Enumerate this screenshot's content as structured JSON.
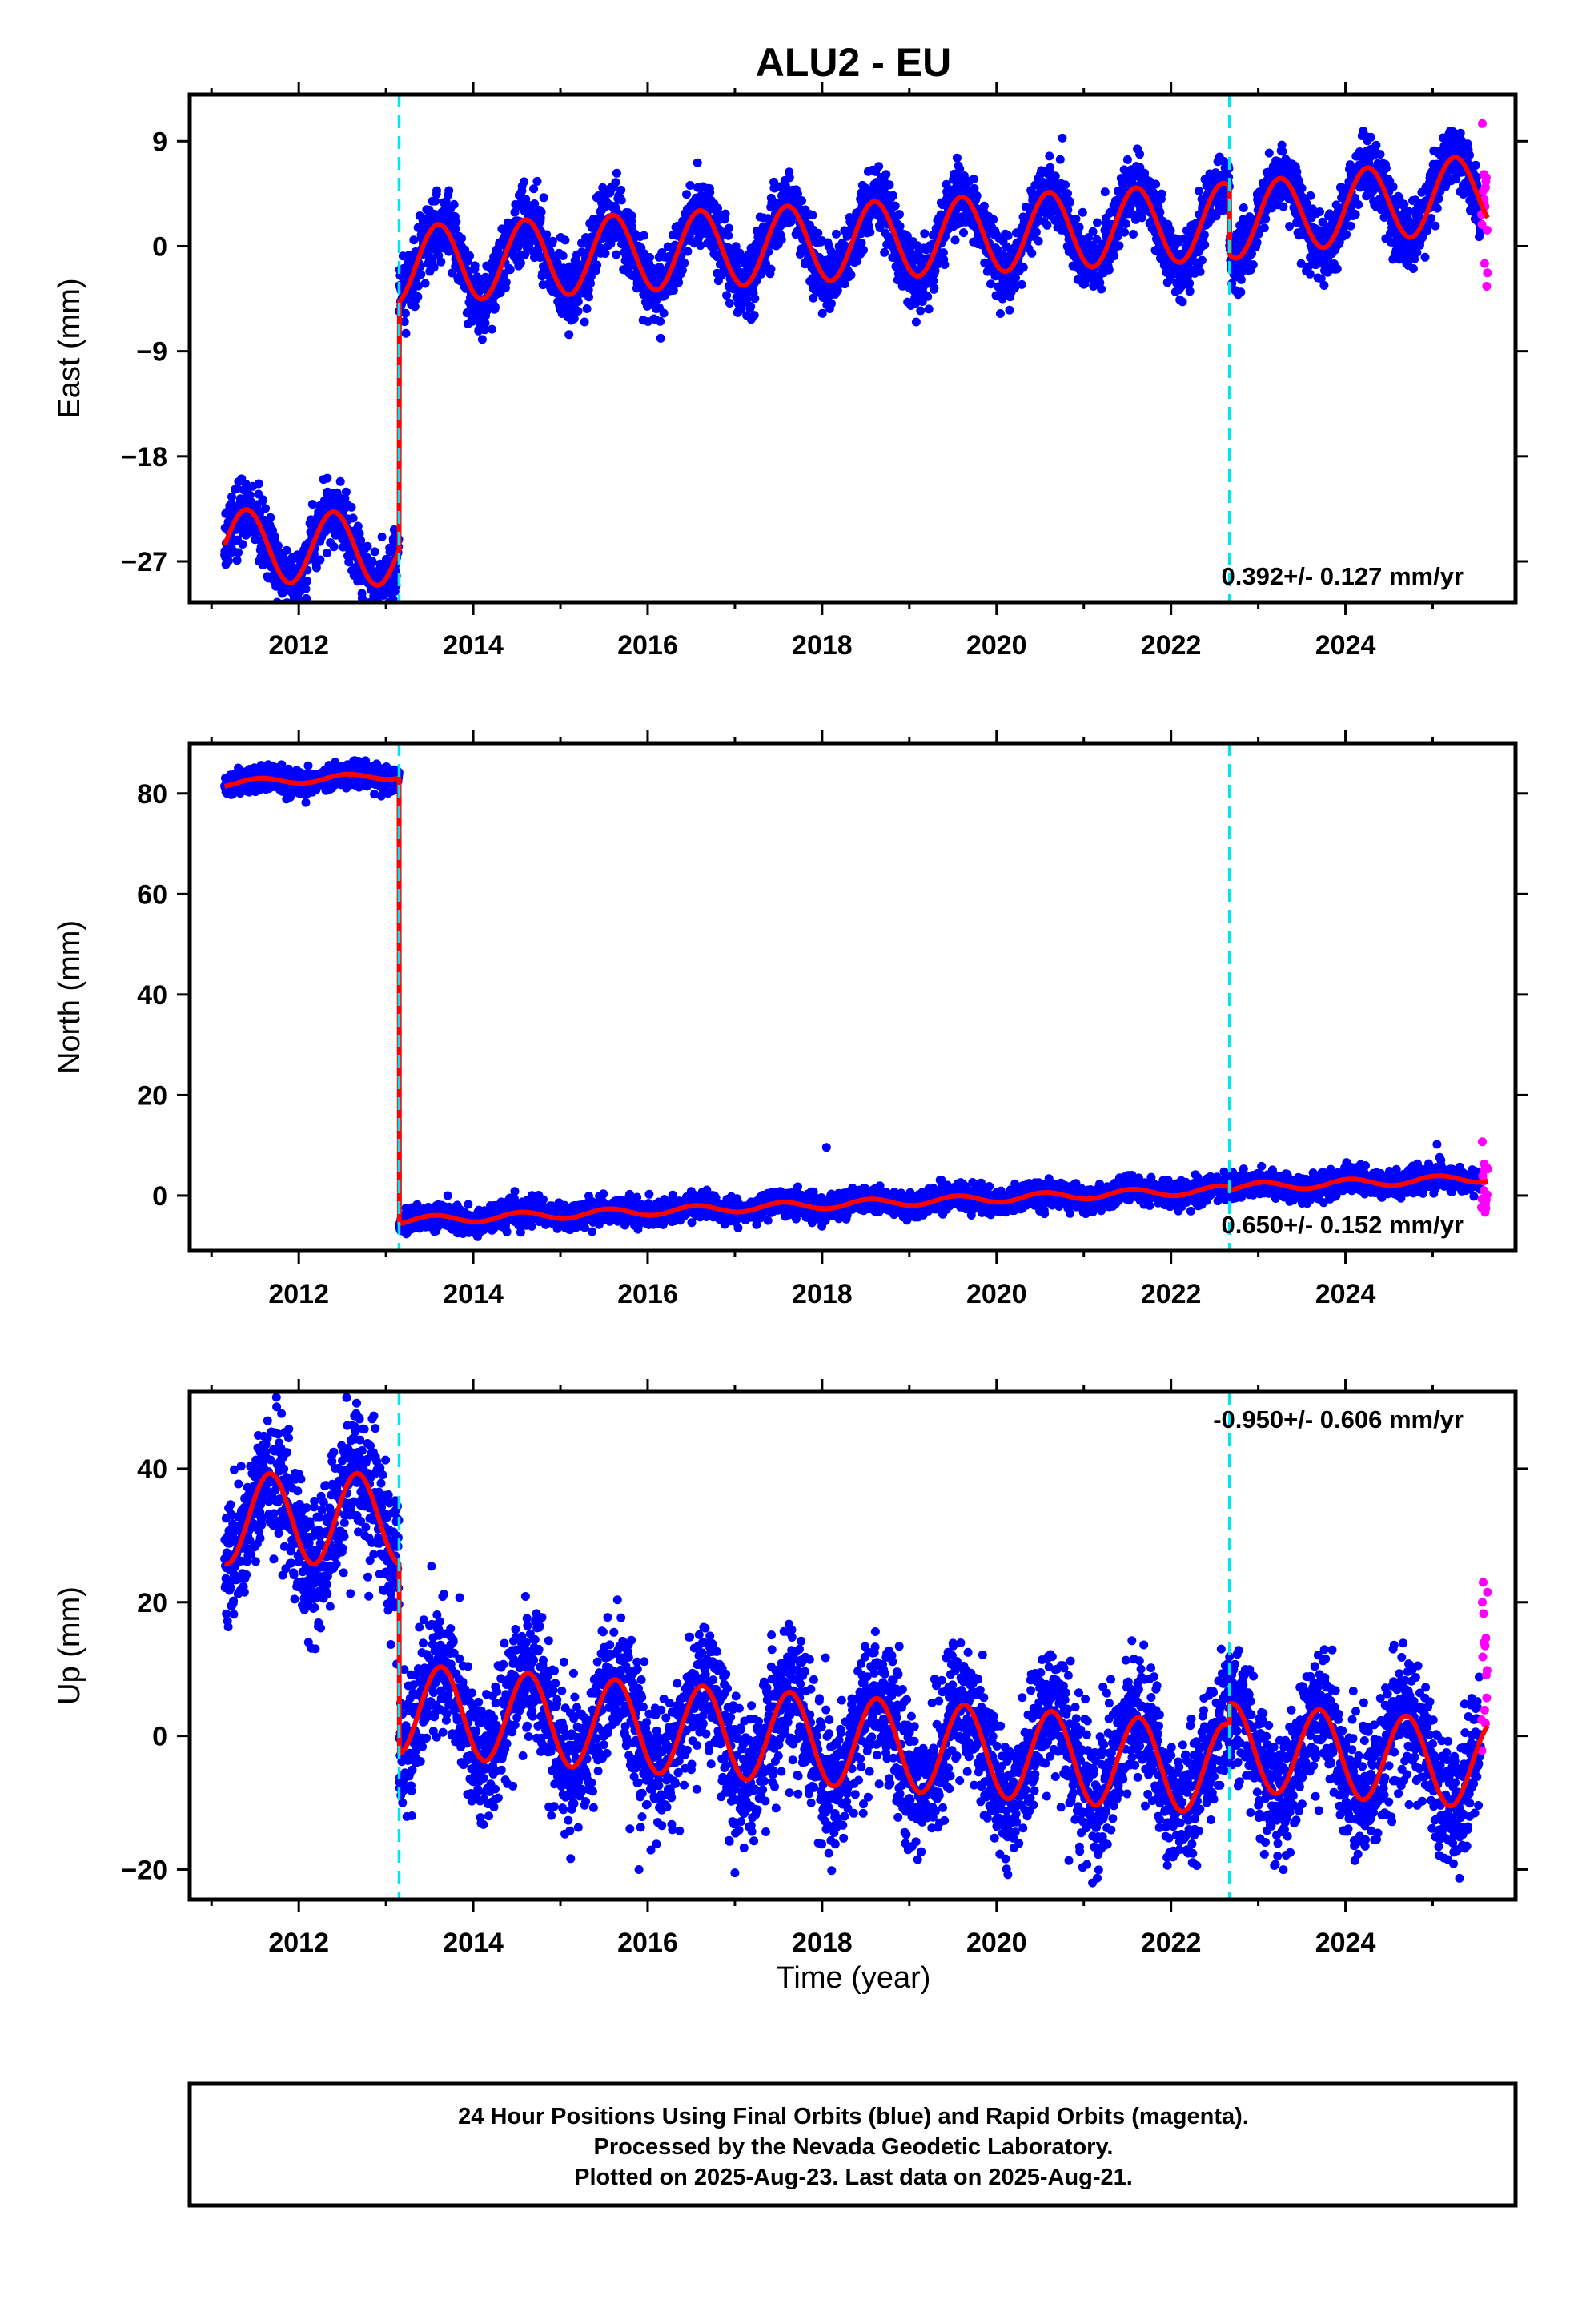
{
  "title": "ALU2 - EU",
  "xlabel": "Time (year)",
  "caption": [
    "24 Hour Positions Using Final Orbits (blue) and Rapid Orbits (magenta).",
    "Processed by the Nevada Geodetic Laboratory.",
    "Plotted on 2025-Aug-23. Last data on 2025-Aug-21."
  ],
  "colors": {
    "final_points": "#0000ff",
    "rapid_points": "#ff00ff",
    "model": "#ff0000",
    "breaks": "#00e5ee",
    "frame": "#000000"
  },
  "chart_data": [
    {
      "type": "scatter",
      "ylabel": "East (mm)",
      "xlim": [
        2010.75,
        2025.95
      ],
      "ylim": [
        -30.5,
        13
      ],
      "xticks": [
        2012,
        2014,
        2016,
        2018,
        2020,
        2022,
        2024
      ],
      "yticks": [
        -27,
        -18,
        -9,
        0,
        9
      ],
      "ytick_labels": [
        "−27",
        "−18",
        "−9",
        "0",
        "9"
      ],
      "breaks": [
        2013.15,
        2022.67
      ],
      "rate_text": "0.392+/- 0.127 mm/yr",
      "rate_position": "bottom-right",
      "series": {
        "final": {
          "start": 2011.15,
          "end": 2025.55
        },
        "rapid": {
          "start": 2025.56,
          "end": 2025.63
        }
      },
      "model_segments": [
        {
          "start": 2011.15,
          "end": 2013.15,
          "offset": -25.6,
          "trend": -0.2,
          "annual": 3.1,
          "phase": 2011.15
        },
        {
          "start": 2013.15,
          "end": 2022.67,
          "offset": -1.6,
          "trend": 0.392,
          "annual": 3.3,
          "phase": 2013.35
        },
        {
          "start": 2022.67,
          "end": 2025.63,
          "offset": 2.1,
          "trend": 0.9,
          "annual": 3.2,
          "phase": 2023.0
        }
      ]
    },
    {
      "type": "scatter",
      "ylabel": "North (mm)",
      "xlim": [
        2010.75,
        2025.95
      ],
      "ylim": [
        -11,
        90
      ],
      "xticks": [
        2012,
        2014,
        2016,
        2018,
        2020,
        2022,
        2024
      ],
      "yticks": [
        0,
        20,
        40,
        60,
        80
      ],
      "ytick_labels": [
        "0",
        "20",
        "40",
        "60",
        "80"
      ],
      "breaks": [
        2013.15,
        2022.67
      ],
      "rate_text": "0.650+/- 0.152 mm/yr",
      "rate_position": "bottom-right",
      "series": {
        "final": {
          "start": 2011.15,
          "end": 2025.55
        },
        "rapid": {
          "start": 2025.56,
          "end": 2025.63
        }
      },
      "model_segments": [
        {
          "start": 2011.15,
          "end": 2013.15,
          "offset": 82.0,
          "trend": 0.8,
          "annual": 0.7,
          "phase": 2011.3
        },
        {
          "start": 2013.15,
          "end": 2022.67,
          "offset": -5.0,
          "trend": 0.65,
          "annual": 0.8,
          "phase": 2013.3
        },
        {
          "start": 2022.67,
          "end": 2025.63,
          "offset": 1.6,
          "trend": 0.65,
          "annual": 0.8,
          "phase": 2022.8
        }
      ],
      "outliers": [
        [
          2018.05,
          9.6
        ],
        [
          2025.05,
          10.2
        ]
      ]
    },
    {
      "type": "scatter",
      "ylabel": "Up (mm)",
      "xlim": [
        2010.75,
        2025.95
      ],
      "ylim": [
        -24.5,
        51.5
      ],
      "xticks": [
        2012,
        2014,
        2016,
        2018,
        2020,
        2022,
        2024
      ],
      "yticks": [
        -20,
        0,
        20,
        40
      ],
      "ytick_labels": [
        "−20",
        "0",
        "20",
        "40"
      ],
      "breaks": [
        2013.15,
        2022.67
      ],
      "rate_text": "-0.950+/- 0.606 mm/yr",
      "rate_position": "top-right",
      "series": {
        "final": {
          "start": 2011.15,
          "end": 2025.55
        },
        "rapid": {
          "start": 2025.56,
          "end": 2025.63
        }
      },
      "model_segments": [
        {
          "start": 2011.15,
          "end": 2013.15,
          "offset": 32.5,
          "trend": 0.0,
          "annual": 6.8,
          "phase": 2011.42
        },
        {
          "start": 2013.15,
          "end": 2022.67,
          "offset": 4.0,
          "trend": -0.95,
          "annual": 6.8,
          "phase": 2013.38
        },
        {
          "start": 2022.67,
          "end": 2025.63,
          "offset": -1.6,
          "trend": -0.95,
          "annual": 6.5,
          "phase": 2023.45
        }
      ],
      "outliers": [
        [
          2015.9,
          -20.0
        ],
        [
          2017.0,
          -20.5
        ],
        [
          2021.1,
          -22.0
        ]
      ]
    }
  ]
}
